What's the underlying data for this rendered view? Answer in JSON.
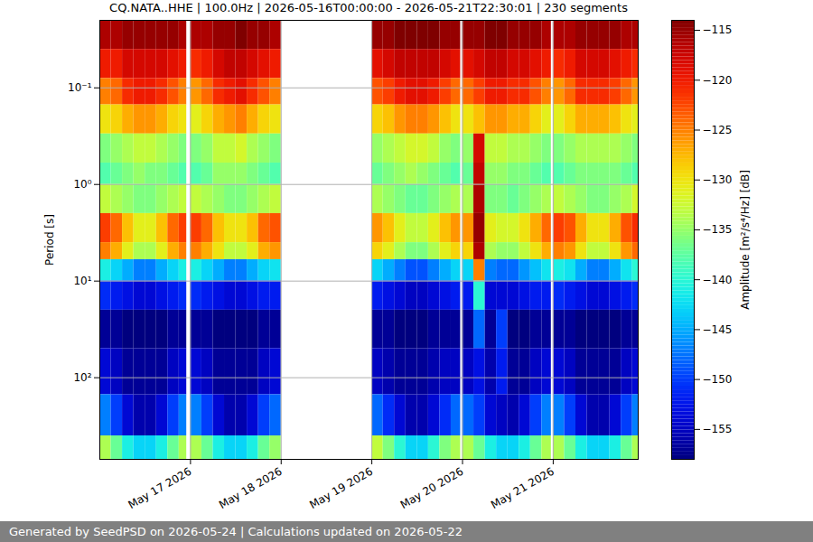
{
  "chart_data": {
    "type": "heatmap",
    "title": "CQ.NATA..HHE | 100.0Hz | 2026-05-16T00:00:00 - 2026-05-21T22:30:01 | 230 segments",
    "footer": "Generated by SeedPSD on 2026-05-24 | Calculations updated on 2026-05-22",
    "ylabel": "Period [s]",
    "log": "y",
    "grid": true,
    "xlim": [
      "2026-05-16T00:00:00",
      "2026-05-21T22:30:00"
    ],
    "ylim": [
      0.02,
      700
    ],
    "xticks": [
      {
        "value": "2026-05-17T00:00:00",
        "label": "May 17 2026"
      },
      {
        "value": "2026-05-18T00:00:00",
        "label": "May 18 2026"
      },
      {
        "value": "2026-05-19T00:00:00",
        "label": "May 19 2026"
      },
      {
        "value": "2026-05-20T00:00:00",
        "label": "May 20 2026"
      },
      {
        "value": "2026-05-21T00:00:00",
        "label": "May 21 2026"
      }
    ],
    "yticks": [
      {
        "value": 0.1,
        "label": "10⁻¹"
      },
      {
        "value": 1,
        "label": "10⁰"
      },
      {
        "value": 10,
        "label": "10¹"
      },
      {
        "value": 100,
        "label": "10²"
      }
    ],
    "x": [
      "2026-05-16T00:00:00",
      "2026-05-16T03:00:00",
      "2026-05-16T06:00:00",
      "2026-05-16T09:00:00",
      "2026-05-16T12:00:00",
      "2026-05-16T15:00:00",
      "2026-05-16T18:00:00",
      "2026-05-16T21:00:00",
      "2026-05-17T00:00:00",
      "2026-05-17T03:00:00",
      "2026-05-17T06:00:00",
      "2026-05-17T09:00:00",
      "2026-05-17T12:00:00",
      "2026-05-17T15:00:00",
      "2026-05-17T18:00:00",
      "2026-05-17T21:00:00",
      "2026-05-19T00:00:00",
      "2026-05-19T03:00:00",
      "2026-05-19T06:00:00",
      "2026-05-19T09:00:00",
      "2026-05-19T12:00:00",
      "2026-05-19T15:00:00",
      "2026-05-19T18:00:00",
      "2026-05-19T21:00:00",
      "2026-05-20T00:00:00",
      "2026-05-20T03:00:00",
      "2026-05-20T06:00:00",
      "2026-05-20T09:00:00",
      "2026-05-20T12:00:00",
      "2026-05-20T15:00:00",
      "2026-05-20T18:00:00",
      "2026-05-20T21:00:00",
      "2026-05-21T00:00:00",
      "2026-05-21T03:00:00",
      "2026-05-21T06:00:00",
      "2026-05-21T09:00:00",
      "2026-05-21T12:00:00",
      "2026-05-21T15:00:00",
      "2026-05-21T18:00:00",
      "2026-05-21T21:00:00"
    ],
    "x_end": [
      "2026-05-16T03:00:00",
      "2026-05-16T06:00:00",
      "2026-05-16T09:00:00",
      "2026-05-16T12:00:00",
      "2026-05-16T15:00:00",
      "2026-05-16T18:00:00",
      "2026-05-16T21:00:00",
      "2026-05-16T23:00:00",
      "2026-05-17T03:00:00",
      "2026-05-17T06:00:00",
      "2026-05-17T09:00:00",
      "2026-05-17T12:00:00",
      "2026-05-17T15:00:00",
      "2026-05-17T18:00:00",
      "2026-05-17T21:00:00",
      "2026-05-18T00:00:00",
      "2026-05-19T03:00:00",
      "2026-05-19T06:00:00",
      "2026-05-19T09:00:00",
      "2026-05-19T12:00:00",
      "2026-05-19T15:00:00",
      "2026-05-19T18:00:00",
      "2026-05-19T21:00:00",
      "2026-05-19T23:30:00",
      "2026-05-20T03:00:00",
      "2026-05-20T06:00:00",
      "2026-05-20T09:00:00",
      "2026-05-20T12:00:00",
      "2026-05-20T15:00:00",
      "2026-05-20T18:00:00",
      "2026-05-20T21:00:00",
      "2026-05-20T23:30:00",
      "2026-05-21T03:00:00",
      "2026-05-21T06:00:00",
      "2026-05-21T09:00:00",
      "2026-05-21T12:00:00",
      "2026-05-21T15:00:00",
      "2026-05-21T18:00:00",
      "2026-05-21T21:00:00",
      "2026-05-21T22:30:00"
    ],
    "period_edges": [
      0.02,
      0.04,
      0.08,
      0.15,
      0.3,
      0.6,
      1,
      2,
      4,
      6,
      10,
      20,
      50,
      150,
      400,
      700
    ],
    "values": [
      [
        -116,
        -116,
        -115,
        -115,
        -115,
        -115,
        -115,
        -116,
        -116,
        -116,
        -115,
        -115,
        -114,
        -115,
        -115,
        -116,
        -115,
        -115,
        -114,
        -114,
        -114,
        -114,
        -115,
        -115,
        -115,
        -115,
        -114,
        -114,
        -115,
        -115,
        -115,
        -116,
        -116,
        -116,
        -115,
        -115,
        -115,
        -115,
        -116,
        -116
      ],
      [
        -120,
        -120,
        -118,
        -118,
        -118,
        -118,
        -119,
        -120,
        -121,
        -120,
        -118,
        -117,
        -117,
        -118,
        -119,
        -120,
        -119,
        -118,
        -117,
        -117,
        -117,
        -117,
        -118,
        -119,
        -119,
        -118,
        -117,
        -117,
        -118,
        -118,
        -119,
        -120,
        -121,
        -120,
        -118,
        -118,
        -118,
        -119,
        -120,
        -121
      ],
      [
        -125,
        -124,
        -121,
        -120,
        -120,
        -121,
        -123,
        -125,
        -126,
        -124,
        -121,
        -120,
        -119,
        -121,
        -123,
        -125,
        -123,
        -122,
        -120,
        -119,
        -119,
        -120,
        -122,
        -124,
        -124,
        -122,
        -120,
        -120,
        -121,
        -121,
        -123,
        -125,
        -126,
        -124,
        -121,
        -121,
        -121,
        -122,
        -124,
        -126
      ],
      [
        -130,
        -129,
        -127,
        -126,
        -126,
        -127,
        -129,
        -130,
        -131,
        -129,
        -127,
        -126,
        -125,
        -127,
        -129,
        -130,
        -129,
        -128,
        -126,
        -125,
        -125,
        -126,
        -128,
        -130,
        -130,
        -128,
        -126,
        -126,
        -127,
        -127,
        -129,
        -131,
        -131,
        -129,
        -127,
        -127,
        -127,
        -128,
        -130,
        -131
      ],
      [
        -136,
        -135,
        -134,
        -133,
        -133,
        -134,
        -135,
        -136,
        -136,
        -135,
        -133,
        -133,
        -132,
        -134,
        -135,
        -136,
        -135,
        -134,
        -133,
        -132,
        -132,
        -133,
        -135,
        -136,
        -135,
        -118,
        -133,
        -133,
        -134,
        -134,
        -135,
        -136,
        -136,
        -135,
        -134,
        -134,
        -134,
        -134,
        -135,
        -136
      ],
      [
        -138,
        -137,
        -136,
        -135,
        -136,
        -136,
        -137,
        -138,
        -138,
        -137,
        -135,
        -135,
        -135,
        -136,
        -137,
        -138,
        -137,
        -136,
        -135,
        -134,
        -135,
        -136,
        -137,
        -138,
        -137,
        -117,
        -135,
        -135,
        -136,
        -136,
        -137,
        -138,
        -138,
        -137,
        -136,
        -136,
        -136,
        -136,
        -137,
        -138
      ],
      [
        -133,
        -134,
        -135,
        -136,
        -136,
        -135,
        -134,
        -133,
        -133,
        -134,
        -135,
        -136,
        -136,
        -135,
        -134,
        -133,
        -134,
        -135,
        -136,
        -137,
        -137,
        -136,
        -135,
        -134,
        -134,
        -116,
        -136,
        -136,
        -137,
        -136,
        -135,
        -134,
        -133,
        -134,
        -135,
        -136,
        -136,
        -135,
        -134,
        -132
      ],
      [
        -122,
        -124,
        -128,
        -131,
        -131,
        -128,
        -124,
        -122,
        -122,
        -124,
        -128,
        -130,
        -130,
        -128,
        -124,
        -123,
        -126,
        -128,
        -131,
        -133,
        -133,
        -131,
        -128,
        -126,
        -126,
        -115,
        -131,
        -132,
        -132,
        -130,
        -127,
        -124,
        -122,
        -123,
        -127,
        -130,
        -130,
        -127,
        -123,
        -121
      ],
      [
        -125,
        -127,
        -131,
        -134,
        -134,
        -131,
        -127,
        -125,
        -125,
        -127,
        -130,
        -133,
        -133,
        -131,
        -127,
        -126,
        -129,
        -131,
        -134,
        -136,
        -136,
        -134,
        -131,
        -129,
        -129,
        -116,
        -134,
        -135,
        -135,
        -133,
        -130,
        -127,
        -125,
        -126,
        -130,
        -133,
        -133,
        -130,
        -126,
        -124
      ],
      [
        -141,
        -143,
        -145,
        -147,
        -147,
        -145,
        -143,
        -141,
        -141,
        -143,
        -145,
        -147,
        -147,
        -145,
        -143,
        -142,
        -143,
        -145,
        -147,
        -149,
        -149,
        -147,
        -145,
        -143,
        -143,
        -125,
        -147,
        -148,
        -148,
        -146,
        -144,
        -142,
        -141,
        -142,
        -145,
        -147,
        -147,
        -145,
        -142,
        -140
      ],
      [
        -151,
        -152,
        -153,
        -154,
        -154,
        -153,
        -152,
        -151,
        -151,
        -152,
        -153,
        -154,
        -154,
        -153,
        -152,
        -152,
        -152,
        -153,
        -154,
        -155,
        -155,
        -154,
        -153,
        -152,
        -152,
        -140,
        -154,
        -154,
        -154,
        -153,
        -152,
        -152,
        -151,
        -152,
        -153,
        -154,
        -154,
        -153,
        -152,
        -151
      ],
      [
        -157,
        -157,
        -158,
        -158,
        -158,
        -158,
        -157,
        -157,
        -157,
        -157,
        -158,
        -158,
        -158,
        -158,
        -157,
        -157,
        -157,
        -157,
        -158,
        -158,
        -158,
        -157,
        -157,
        -157,
        -157,
        -148,
        -157,
        -150,
        -158,
        -158,
        -157,
        -157,
        -157,
        -157,
        -158,
        -158,
        -158,
        -158,
        -157,
        -157
      ],
      [
        -154,
        -155,
        -157,
        -157,
        -157,
        -157,
        -155,
        -154,
        -154,
        -155,
        -157,
        -157,
        -157,
        -157,
        -155,
        -154,
        -155,
        -156,
        -157,
        -157,
        -157,
        -156,
        -155,
        -155,
        -155,
        -153,
        -156,
        -152,
        -157,
        -157,
        -155,
        -154,
        -154,
        -155,
        -157,
        -157,
        -157,
        -157,
        -155,
        -154
      ],
      [
        -147,
        -150,
        -154,
        -156,
        -156,
        -154,
        -150,
        -147,
        -147,
        -150,
        -154,
        -156,
        -156,
        -154,
        -150,
        -148,
        -148,
        -151,
        -154,
        -156,
        -156,
        -154,
        -151,
        -148,
        -148,
        -150,
        -154,
        -155,
        -156,
        -154,
        -150,
        -147,
        -147,
        -150,
        -154,
        -156,
        -156,
        -154,
        -150,
        -147
      ],
      [
        -134,
        -137,
        -141,
        -143,
        -143,
        -141,
        -137,
        -134,
        -134,
        -137,
        -141,
        -143,
        -143,
        -141,
        -137,
        -135,
        -133,
        -136,
        -140,
        -143,
        -143,
        -140,
        -136,
        -134,
        -134,
        -137,
        -141,
        -143,
        -143,
        -141,
        -137,
        -134,
        -134,
        -137,
        -141,
        -143,
        -143,
        -141,
        -137,
        -134
      ]
    ],
    "colorbar": {
      "label": "Amplitude [m²/s⁴/Hz] [dB]",
      "range": [
        -158,
        -114
      ],
      "ticks": [
        -155,
        -150,
        -145,
        -140,
        -135,
        -130,
        -125,
        -120,
        -115
      ]
    }
  }
}
